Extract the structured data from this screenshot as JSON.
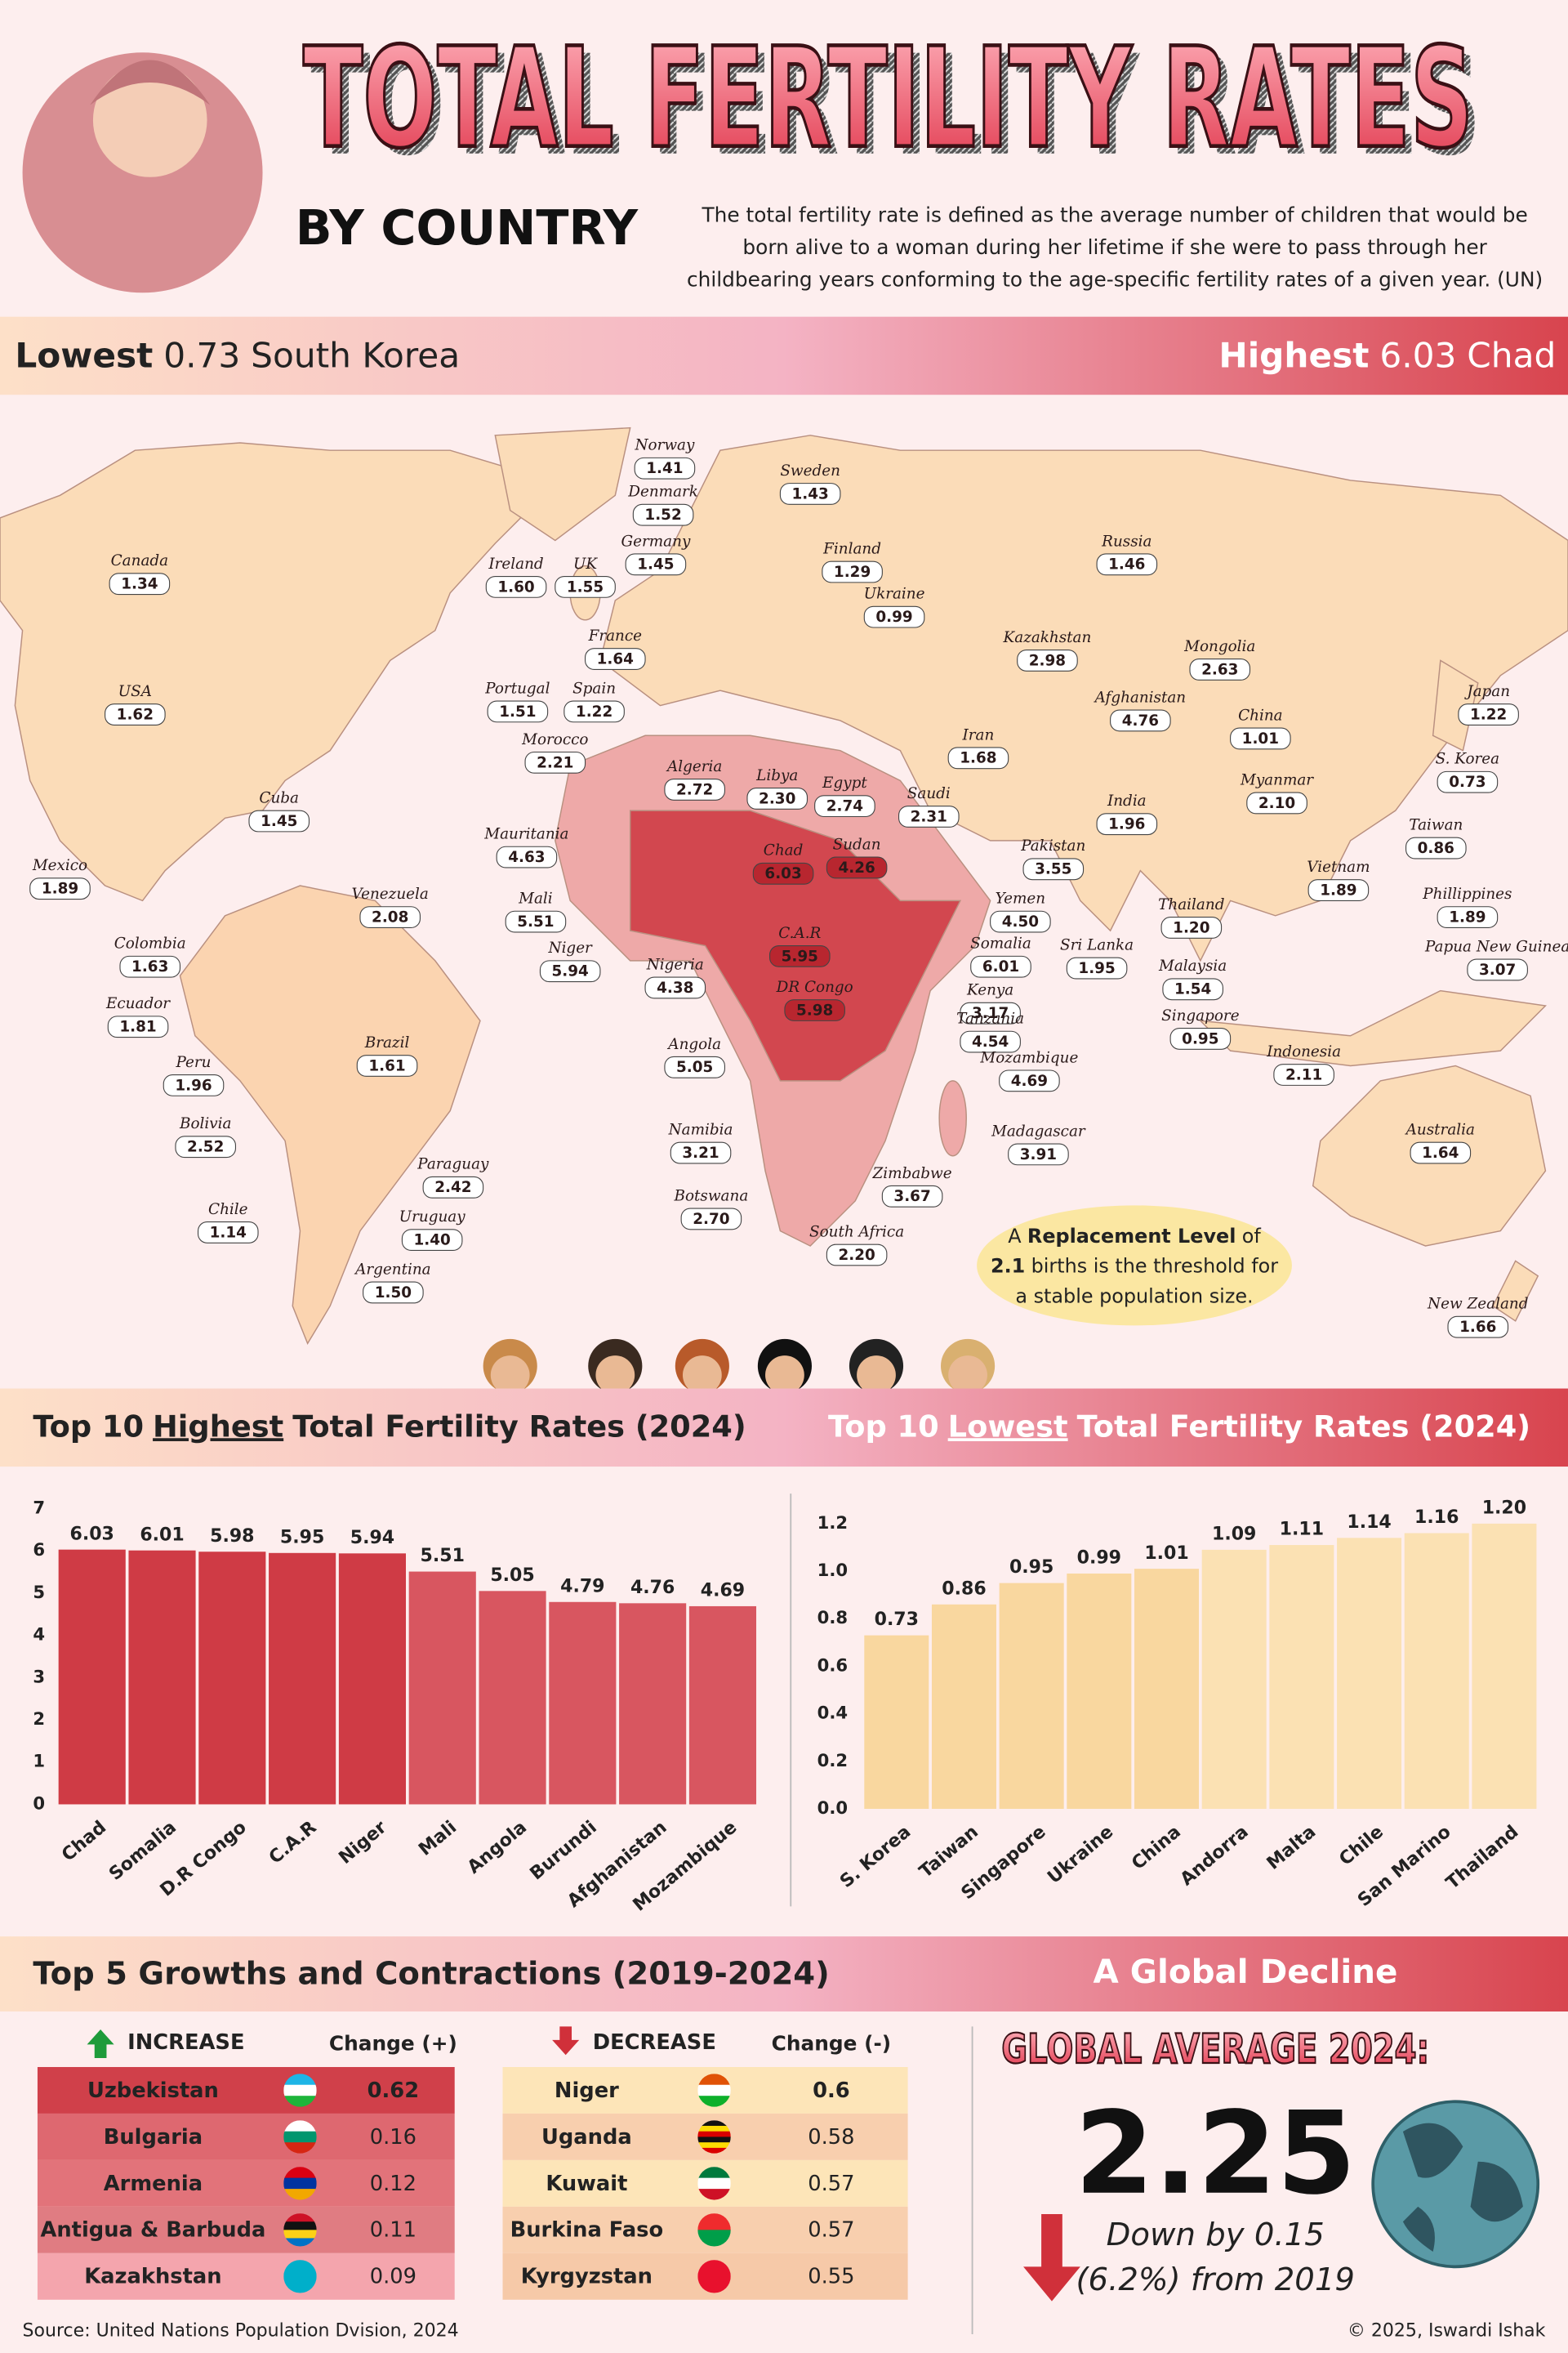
{
  "header": {
    "title": "TOTAL FERTILITY RATES",
    "subtitle": "BY COUNTRY",
    "description": [
      "The total fertility rate is defined as the average number of children that would be",
      "born alive to a woman during her lifetime if she were to pass through her",
      "childbearing years conforming to the age-specific fertility rates of a given year. (UN)"
    ]
  },
  "banner": {
    "lowest": {
      "label": "Lowest",
      "value": 0.73,
      "country": "South Korea"
    },
    "highest": {
      "label": "Highest",
      "value": 6.03,
      "country": "Chad"
    }
  },
  "map": {
    "labels": [
      {
        "name": "Canada",
        "value": 1.34
      },
      {
        "name": "USA",
        "value": 1.62
      },
      {
        "name": "Mexico",
        "value": 1.89
      },
      {
        "name": "Cuba",
        "value": 1.45
      },
      {
        "name": "Venezuela",
        "value": 2.08
      },
      {
        "name": "Colombia",
        "value": 1.63
      },
      {
        "name": "Ecuador",
        "value": 1.81
      },
      {
        "name": "Peru",
        "value": 1.96
      },
      {
        "name": "Bolivia",
        "value": 2.52
      },
      {
        "name": "Brazil",
        "value": 1.61
      },
      {
        "name": "Paraguay",
        "value": 2.42
      },
      {
        "name": "Uruguay",
        "value": 1.4,
        "value_label": "1.40"
      },
      {
        "name": "Chile",
        "value": 1.14
      },
      {
        "name": "Argentina",
        "value": 1.5,
        "value_label": "1.50"
      },
      {
        "name": "Ireland",
        "value": 1.6,
        "value_label": "1.60"
      },
      {
        "name": "UK",
        "value": 1.55
      },
      {
        "name": "Portugal",
        "value": 1.51
      },
      {
        "name": "Spain",
        "value": 1.22
      },
      {
        "name": "France",
        "value": 1.64
      },
      {
        "name": "Morocco",
        "value": 2.21
      },
      {
        "name": "Norway",
        "value": 1.41
      },
      {
        "name": "Denmark",
        "value": 1.52
      },
      {
        "name": "Germany",
        "value": 1.45
      },
      {
        "name": "Sweden",
        "value": 1.43
      },
      {
        "name": "Finland",
        "value": 1.29
      },
      {
        "name": "Ukraine",
        "value": 0.99
      },
      {
        "name": "Russia",
        "value": 1.46
      },
      {
        "name": "Kazakhstan",
        "value": 2.98
      },
      {
        "name": "Mongolia",
        "value": 2.63
      },
      {
        "name": "Japan",
        "value": 1.22
      },
      {
        "name": "China",
        "value": 1.01
      },
      {
        "name": "S. Korea",
        "value": 0.73
      },
      {
        "name": "Afghanistan",
        "value": 4.76
      },
      {
        "name": "Iran",
        "value": 1.68
      },
      {
        "name": "Algeria",
        "value": 2.72
      },
      {
        "name": "Libya",
        "value": 2.3,
        "value_label": "2.30"
      },
      {
        "name": "Egypt",
        "value": 2.74
      },
      {
        "name": "Saudi",
        "value": 2.31
      },
      {
        "name": "Myanmar",
        "value": 2.1,
        "value_label": "2.10"
      },
      {
        "name": "India",
        "value": 1.96
      },
      {
        "name": "Taiwan",
        "value": 0.86
      },
      {
        "name": "Mauritania",
        "value": 4.63
      },
      {
        "name": "Chad",
        "value": 6.03
      },
      {
        "name": "Sudan",
        "value": 4.26
      },
      {
        "name": "Pakistan",
        "value": 3.55
      },
      {
        "name": "Mali",
        "value": 5.51
      },
      {
        "name": "Yemen",
        "value": 4.5,
        "value_label": "4.50"
      },
      {
        "name": "Vietnam",
        "value": 1.89
      },
      {
        "name": "Phillippines",
        "value": 1.89
      },
      {
        "name": "Thailand",
        "value": 1.2,
        "value_label": "1.20"
      },
      {
        "name": "Niger",
        "value": 5.94
      },
      {
        "name": "C.A.R",
        "value": 5.95
      },
      {
        "name": "Nigeria",
        "value": 4.38
      },
      {
        "name": "Somalia",
        "value": 6.01
      },
      {
        "name": "Sri Lanka",
        "value": 1.95
      },
      {
        "name": "Papua New Guinea",
        "value": 3.07
      },
      {
        "name": "Malaysia",
        "value": 1.54
      },
      {
        "name": "DR Congo",
        "value": 5.98
      },
      {
        "name": "Kenya",
        "value": 3.17
      },
      {
        "name": "Singapore",
        "value": 0.95
      },
      {
        "name": "Tanzania",
        "value": 4.54
      },
      {
        "name": "Angola",
        "value": 5.05
      },
      {
        "name": "Mozambique",
        "value": 4.69
      },
      {
        "name": "Indonesia",
        "value": 2.11
      },
      {
        "name": "Namibia",
        "value": 3.21
      },
      {
        "name": "Madagascar",
        "value": 3.91
      },
      {
        "name": "Australia",
        "value": 1.64
      },
      {
        "name": "Zimbabwe",
        "value": 3.67
      },
      {
        "name": "Botswana",
        "value": 2.7,
        "value_label": "2.70"
      },
      {
        "name": "South Africa",
        "value": 2.2,
        "value_label": "2.20"
      },
      {
        "name": "New Zealand",
        "value": 1.66
      }
    ],
    "note": {
      "text_1": "A",
      "emphasis": "Replacement Level",
      "text_2": "of",
      "value": 2.1,
      "text_3": "births is the threshold for",
      "text_4": "a stable population size."
    }
  },
  "chart_data": [
    {
      "type": "bar",
      "title": [
        "Top 10",
        "Highest",
        "Total Fertility Rates (2024)"
      ],
      "categories": [
        "Chad",
        "Somalia",
        "D.R Congo",
        "C.A.R",
        "Niger",
        "Mali",
        "Angola",
        "Burundi",
        "Afghanistan",
        "Mozambique"
      ],
      "values": [
        6.03,
        6.01,
        5.98,
        5.95,
        5.94,
        5.51,
        5.05,
        4.79,
        4.76,
        4.69
      ],
      "colors": [
        "#cf3b45",
        "#cf3b45",
        "#cf3b45",
        "#cf3b45",
        "#cf3b45",
        "#d85660",
        "#d85660",
        "#d85660",
        "#d85660",
        "#d85660"
      ],
      "ylim": [
        0,
        7
      ],
      "yticks": [
        0,
        1,
        2,
        3,
        4,
        5,
        6,
        7
      ]
    },
    {
      "type": "bar",
      "title": [
        "Top 10",
        "Lowest",
        "Total Fertility Rates (2024)"
      ],
      "categories": [
        "S. Korea",
        "Taiwan",
        "Singapore",
        "Ukraine",
        "China",
        "Andorra",
        "Malta",
        "Chile",
        "San Marino",
        "Thailand"
      ],
      "values": [
        0.73,
        0.86,
        0.95,
        0.99,
        1.01,
        1.09,
        1.11,
        1.14,
        1.16,
        1.2
      ],
      "value_labels": [
        "0.73",
        "0.86",
        "0.95",
        "0.99",
        "1.01",
        "1.09",
        "1.11",
        "1.14",
        "1.16",
        "1.20"
      ],
      "colors": [
        "#f9d79f",
        "#f9d79f",
        "#f9d79f",
        "#f9d79f",
        "#f9d79f",
        "#fbe1b3",
        "#fbe1b3",
        "#fbe1b3",
        "#fbe1b3",
        "#fbe1b3"
      ],
      "ylim": [
        0,
        1.2
      ],
      "yticks": [
        {
          "value": 0,
          "label": "0.0"
        },
        0.2,
        0.4,
        0.6,
        0.8,
        {
          "value": 1,
          "label": "1.0"
        },
        1.2
      ]
    }
  ],
  "changes": {
    "title": "Top 5 Growths and Contractions (2019-2024)",
    "increase": {
      "header": "INCREASE",
      "change_header": "Change (+)",
      "rows": [
        [
          "Uzbekistan",
          0.62
        ],
        [
          "Bulgaria",
          0.16
        ],
        [
          "Armenia",
          0.12
        ],
        [
          "Antigua & Barbuda",
          0.11
        ],
        [
          "Kazakhstan",
          0.09
        ]
      ]
    },
    "decrease": {
      "header": "DECREASE",
      "change_header": "Change (-)",
      "rows": [
        [
          "Niger",
          0.6
        ],
        [
          "Uganda",
          0.58
        ],
        [
          "Kuwait",
          0.57
        ],
        [
          "Burkina Faso",
          0.57
        ],
        [
          "Kyrgyzstan",
          0.55
        ]
      ]
    }
  },
  "global": {
    "title": "A Global Decline",
    "heading": "GLOBAL AVERAGE 2024:",
    "value": 2.25,
    "change_line_1": "Down by 0.15",
    "change_line_2": "(6.2%) from 2019"
  },
  "footer": {
    "source": "Source: United Nations Population Dvision, 2024",
    "credit": "© 2025, Iswardi Ishak"
  }
}
